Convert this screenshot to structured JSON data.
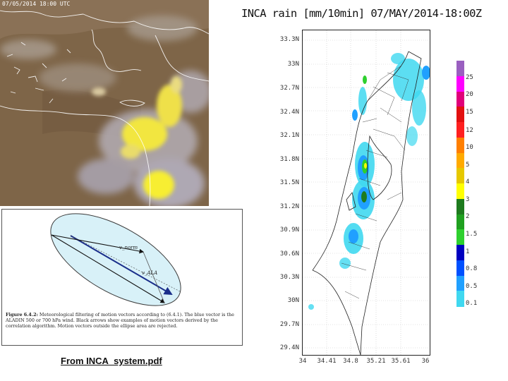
{
  "satellite": {
    "timestamp": "07/05/2014 18:00 UTC"
  },
  "figure": {
    "label_vnorm": "v_norm",
    "label_vala": "v_ALA",
    "caption_bold": "Figure 6.4.2:",
    "caption_text": " Meteorological filtering of motion vectors according to (6.4.1). The blue vector is the ALADIN 500 or 700 hPa wind. Black arrows show examples of motion vectors derived by the correlation algorithm. Motion vectors outside the ellipse area are rejected.",
    "source_label": "From INCA_system.pdf"
  },
  "inca": {
    "title": "INCA rain [mm/10min] 07/MAY/2014-18:00Z",
    "y_ticks": [
      "33.3N",
      "33N",
      "32.7N",
      "32.4N",
      "32.1N",
      "31.8N",
      "31.5N",
      "31.2N",
      "30.9N",
      "30.6N",
      "30.3N",
      "30N",
      "29.7N",
      "29.4N"
    ],
    "x_ticks": [
      "34",
      "34.41",
      "34.8",
      "35.21",
      "35.61",
      "36"
    ],
    "colorbar": {
      "labels": [
        "25",
        "20",
        "15",
        "12",
        "10",
        "5",
        "4",
        "3",
        "2",
        "1.5",
        "1",
        "0.8",
        "0.5",
        "0.1"
      ],
      "colors": [
        "#9a5fc0",
        "#ff00ff",
        "#e0007a",
        "#e21010",
        "#ff2020",
        "#ff7f00",
        "#ffaa00",
        "#e6c800",
        "#ffff00",
        "#1e7b1e",
        "#20a020",
        "#2ed02e",
        "#0000c0",
        "#0050ff",
        "#20a0ff",
        "#40d8f0"
      ]
    }
  }
}
